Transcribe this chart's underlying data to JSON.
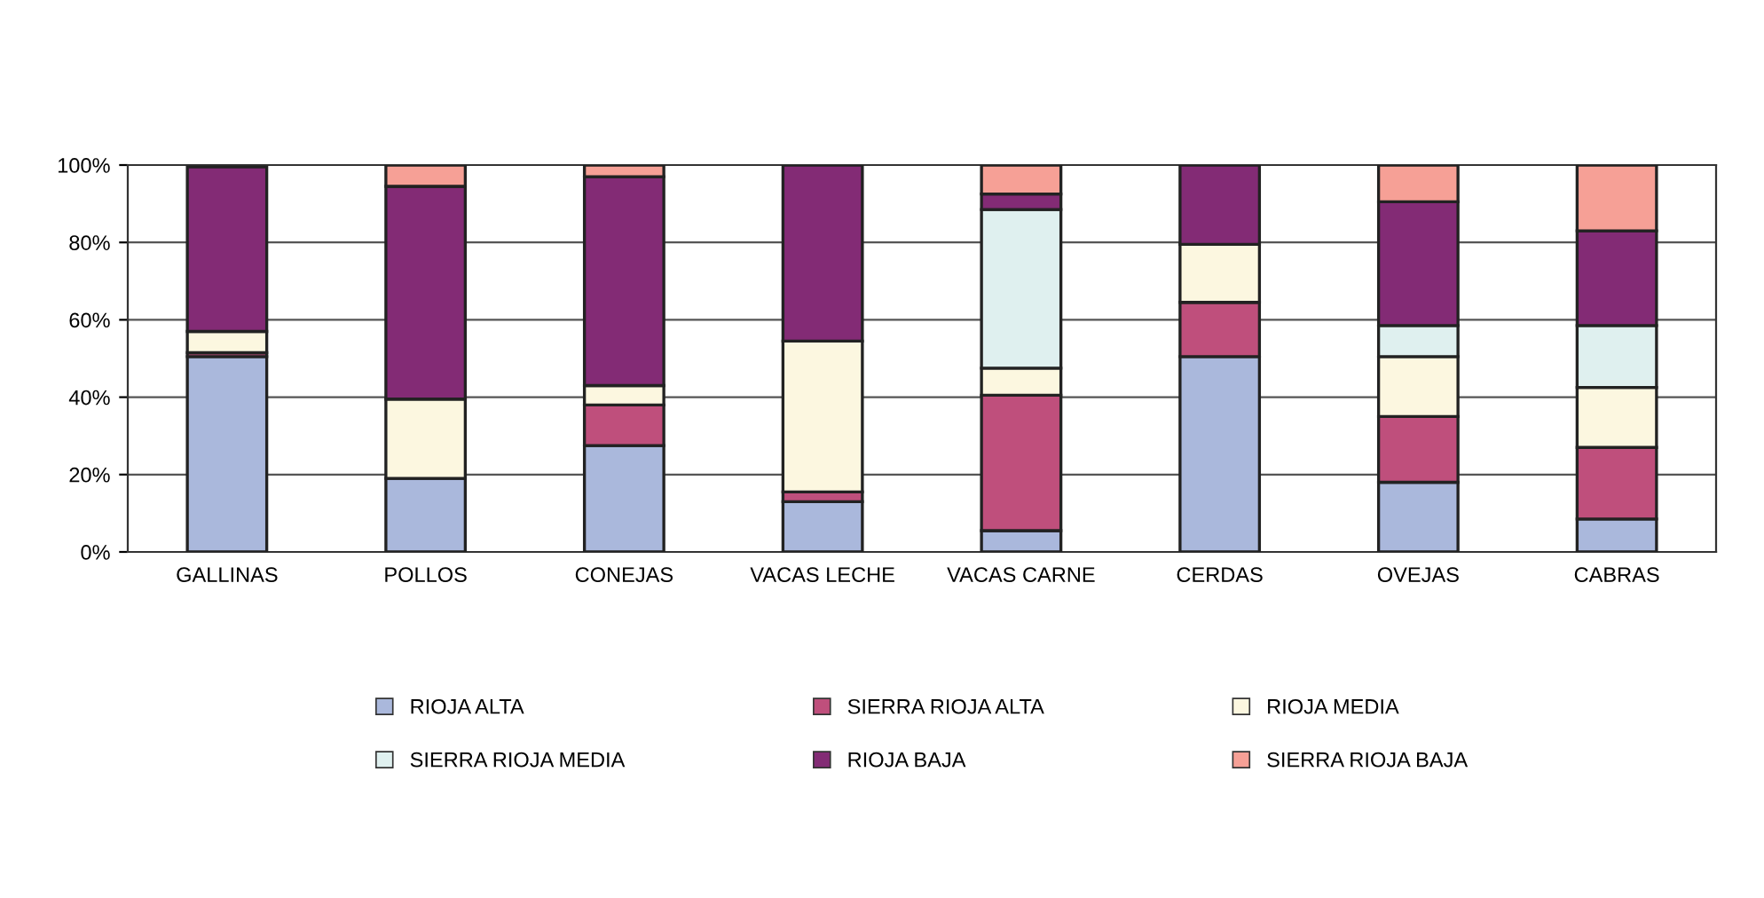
{
  "chart_data": {
    "type": "bar",
    "stacked": true,
    "categories": [
      "GALLINAS",
      "POLLOS",
      "CONEJAS",
      "VACAS LECHE",
      "VACAS CARNE",
      "CERDAS",
      "OVEJAS",
      "CABRAS"
    ],
    "series": [
      {
        "name": "RIOJA ALTA",
        "color": "#aab8dc",
        "values": [
          50.5,
          19,
          27.5,
          13,
          5.5,
          50.5,
          18,
          8.5
        ]
      },
      {
        "name": "SIERRA RIOJA ALTA",
        "color": "#bf4f7c",
        "values": [
          1,
          0,
          10.5,
          2.5,
          35,
          14,
          17,
          18.5
        ]
      },
      {
        "name": "RIOJA MEDIA",
        "color": "#fcf7e0",
        "values": [
          5.5,
          20.5,
          5,
          39,
          7,
          15,
          15.5,
          15.5
        ]
      },
      {
        "name": "SIERRA RIOJA MEDIA",
        "color": "#dff0ef",
        "values": [
          0,
          0,
          0,
          0,
          41,
          0,
          8,
          16
        ]
      },
      {
        "name": "RIOJA BAJA",
        "color": "#832b75",
        "values": [
          42.5,
          55,
          54,
          45.5,
          4,
          20.5,
          32,
          24.5
        ]
      },
      {
        "name": "SIERRA RIOJA BAJA",
        "color": "#f6a096",
        "values": [
          null,
          5.5,
          3,
          0,
          7.5,
          0,
          9.5,
          17
        ]
      }
    ],
    "ylim": [
      0,
      100
    ],
    "yticks": [
      {
        "value": 0,
        "label": "0%"
      },
      {
        "value": 20,
        "label": "20%"
      },
      {
        "value": 40,
        "label": "40%"
      },
      {
        "value": 60,
        "label": "60%"
      },
      {
        "value": 80,
        "label": "80%"
      },
      {
        "value": 100,
        "label": "100%"
      }
    ],
    "grid": "y",
    "legend": "bottom"
  }
}
